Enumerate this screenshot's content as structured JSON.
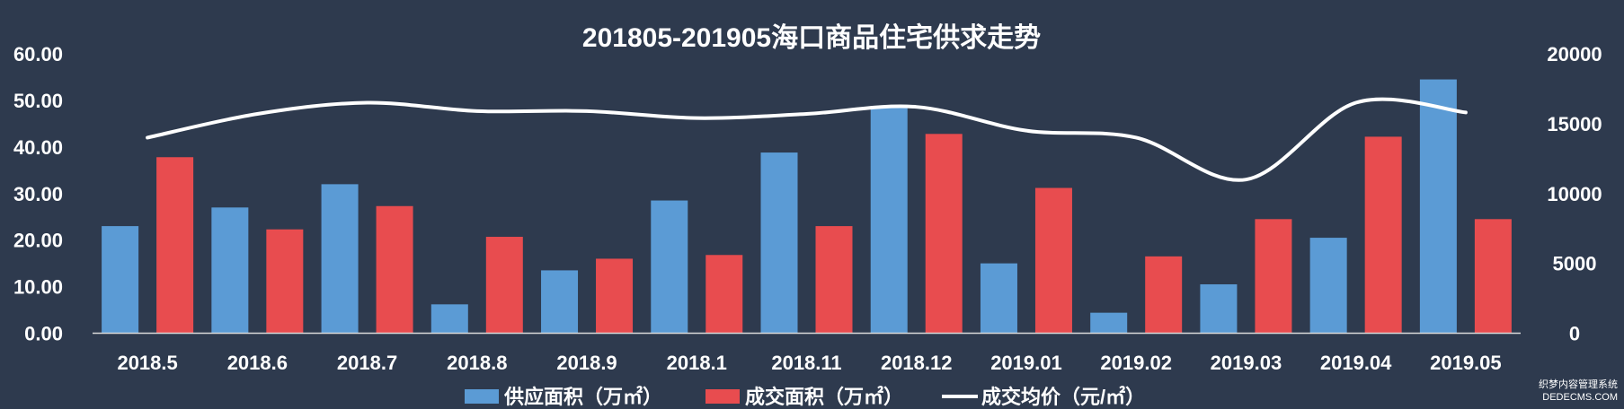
{
  "chart_data": {
    "type": "bar",
    "title": "201805-201905海口商品住宅供求走势",
    "categories": [
      "2018.5",
      "2018.6",
      "2018.7",
      "2018.8",
      "2018.9",
      "2018.1",
      "2018.11",
      "2018.12",
      "2019.01",
      "2019.02",
      "2019.03",
      "2019.04",
      "2019.05"
    ],
    "y_left": {
      "range": [
        0,
        60
      ],
      "ticks": [
        "0.00",
        "10.00",
        "20.00",
        "30.00",
        "40.00",
        "50.00",
        "60.00"
      ]
    },
    "y_right": {
      "range": [
        0,
        20000
      ],
      "ticks": [
        "0",
        "5000",
        "10000",
        "15000",
        "20000"
      ]
    },
    "series": [
      {
        "name": "供应面积（万㎡）",
        "type": "bar",
        "axis": "left",
        "color": "#5b9bd5",
        "values": [
          23.0,
          27.0,
          32.0,
          6.2,
          13.5,
          28.5,
          38.8,
          48.5,
          15.0,
          4.4,
          10.5,
          20.5,
          54.5
        ]
      },
      {
        "name": "成交面积（万㎡）",
        "type": "bar",
        "axis": "left",
        "color": "#e84c4f",
        "values": [
          37.8,
          22.3,
          27.3,
          20.7,
          16.0,
          16.8,
          23.0,
          42.8,
          31.2,
          16.5,
          24.5,
          42.2,
          24.5
        ]
      },
      {
        "name": "成交均价（元/㎡）",
        "type": "line",
        "axis": "right",
        "color": "#ffffff",
        "values": [
          14000,
          15700,
          16500,
          15900,
          15900,
          15400,
          15700,
          16200,
          14500,
          14000,
          11000,
          16500,
          15800
        ]
      }
    ],
    "legend_position": "bottom",
    "grid": false
  },
  "watermark": {
    "line1": "织梦内容管理系统",
    "line2": "DEDECMS.COM"
  }
}
